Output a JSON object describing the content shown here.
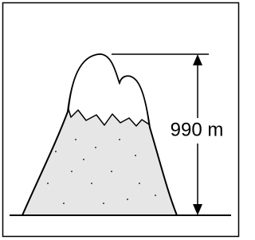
{
  "label": "990 m"
}
